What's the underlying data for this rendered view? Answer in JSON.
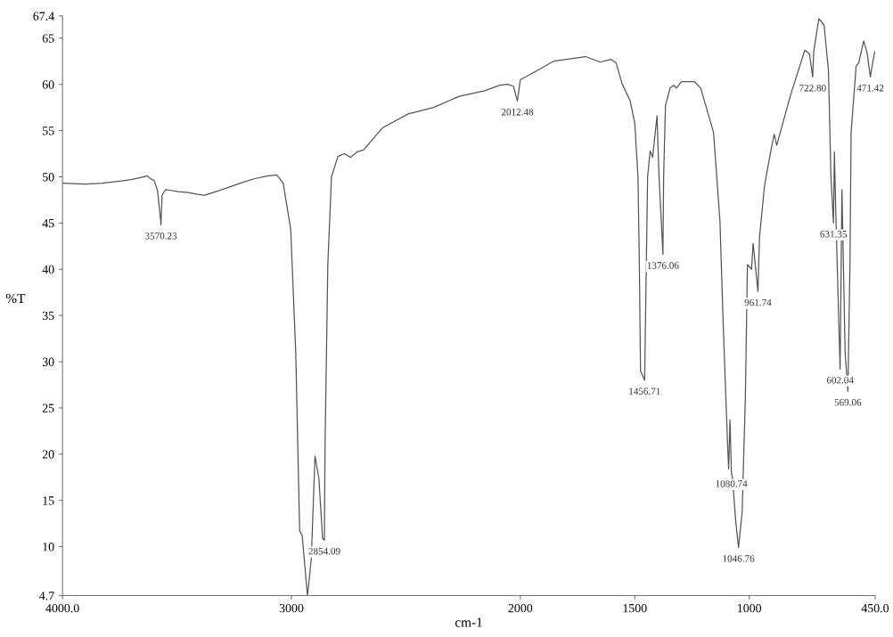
{
  "chart_data": {
    "type": "line",
    "xlabel": "cm-1",
    "ylabel": "%T",
    "x": [
      4000,
      3900,
      3827,
      3760,
      3700,
      3660,
      3630,
      3616,
      3600,
      3585,
      3572,
      3570,
      3565,
      3550,
      3520,
      3493,
      3450,
      3410,
      3380,
      3330,
      3270,
      3200,
      3159,
      3103,
      3064,
      3036,
      3003,
      2981,
      2964,
      2953,
      2930,
      2924,
      2913,
      2897,
      2880,
      2864,
      2856,
      2853,
      2841,
      2825,
      2797,
      2769,
      2741,
      2713,
      2685,
      2602,
      2490,
      2379,
      2267,
      2156,
      2089,
      2056,
      2030,
      2013,
      2000,
      1911,
      1855,
      1799,
      1715,
      1651,
      1603,
      1581,
      1556,
      1520,
      1500,
      1486,
      1480,
      1475,
      1457,
      1453,
      1444,
      1433,
      1422,
      1403,
      1394,
      1377,
      1374,
      1366,
      1346,
      1330,
      1318,
      1296,
      1240,
      1212,
      1156,
      1128,
      1114,
      1095,
      1090,
      1084,
      1078,
      1073,
      1060,
      1047,
      1031,
      1017,
      1008,
      990,
      983,
      962,
      955,
      933,
      905,
      891,
      880,
      821,
      779,
      757,
      737,
      723,
      718,
      696,
      673,
      654,
      643,
      632,
      628,
      620,
      603,
      595,
      581,
      569,
      560,
      555,
      533,
      522,
      500,
      485,
      471,
      463,
      452
    ],
    "values": [
      49.3,
      49.2,
      49.3,
      49.5,
      49.7,
      49.9,
      50.1,
      49.8,
      49.6,
      48.5,
      45.5,
      44.8,
      48.0,
      48.6,
      48.5,
      48.4,
      48.3,
      48.1,
      48.0,
      48.4,
      48.9,
      49.5,
      49.8,
      50.1,
      50.2,
      49.3,
      44.3,
      30.9,
      11.7,
      11.2,
      4.7,
      6.0,
      8.8,
      19.8,
      17.4,
      10.9,
      10.7,
      21.0,
      40.5,
      50.0,
      52.2,
      52.5,
      52.1,
      52.7,
      52.9,
      55.3,
      56.8,
      57.5,
      58.7,
      59.3,
      59.9,
      60.0,
      59.8,
      58.2,
      60.5,
      61.7,
      62.5,
      62.7,
      63.0,
      62.4,
      62.7,
      62.3,
      60.1,
      58.2,
      55.8,
      50.0,
      40.5,
      29.0,
      28.0,
      34.7,
      50.0,
      52.8,
      52.1,
      56.6,
      50.0,
      41.6,
      50.0,
      57.7,
      59.6,
      59.9,
      59.6,
      60.3,
      60.3,
      59.6,
      54.8,
      45.3,
      34.2,
      21.3,
      18.4,
      23.7,
      18.0,
      17.4,
      13.0,
      9.9,
      13.7,
      26.1,
      40.5,
      40.0,
      42.8,
      37.6,
      43.5,
      49.1,
      52.9,
      54.6,
      53.4,
      58.7,
      62.0,
      63.7,
      63.3,
      60.8,
      63.6,
      67.1,
      66.4,
      61.5,
      50.0,
      45.0,
      52.7,
      44.3,
      29.2,
      48.6,
      30.9,
      26.8,
      40.5,
      54.8,
      62.0,
      62.3,
      64.7,
      63.4,
      60.8,
      62.0,
      63.5
    ],
    "color": "#555555",
    "line_style": "solid",
    "marker": "none",
    "grid": false,
    "legend": false,
    "xlim": [
      4000,
      450
    ],
    "ylim": [
      4.7,
      67.4
    ],
    "xticks": [
      {
        "value": 4000,
        "label": "4000.0"
      },
      3000,
      2000,
      1500,
      1000,
      {
        "value": 450,
        "label": "450.0"
      }
    ],
    "yticks": [
      4.7,
      10,
      15,
      20,
      25,
      30,
      35,
      40,
      45,
      50,
      55,
      60,
      65,
      67.4
    ],
    "annotations": [
      {
        "text": "3570.23",
        "x": 3570,
        "y": 44.8
      },
      {
        "text": "2854.09",
        "x": 2856,
        "y": 10.7
      },
      {
        "text": "2012.48",
        "x": 2013,
        "y": 58.2
      },
      {
        "text": "1456.71",
        "x": 1457,
        "y": 28.0
      },
      {
        "text": "1376.06",
        "x": 1377,
        "y": 41.6
      },
      {
        "text": "1080.74",
        "x": 1078,
        "y": 18.0
      },
      {
        "text": "1046.76",
        "x": 1047,
        "y": 9.9
      },
      {
        "text": "961.74",
        "x": 962,
        "y": 37.6
      },
      {
        "text": "722.80",
        "x": 723,
        "y": 60.8
      },
      {
        "text": "631.35",
        "x": 632,
        "y": 45.0
      },
      {
        "text": "602.04",
        "x": 603,
        "y": 29.2
      },
      {
        "text": "569.06",
        "x": 569,
        "y": 26.8
      },
      {
        "text": "471.42",
        "x": 471,
        "y": 60.8
      }
    ]
  }
}
